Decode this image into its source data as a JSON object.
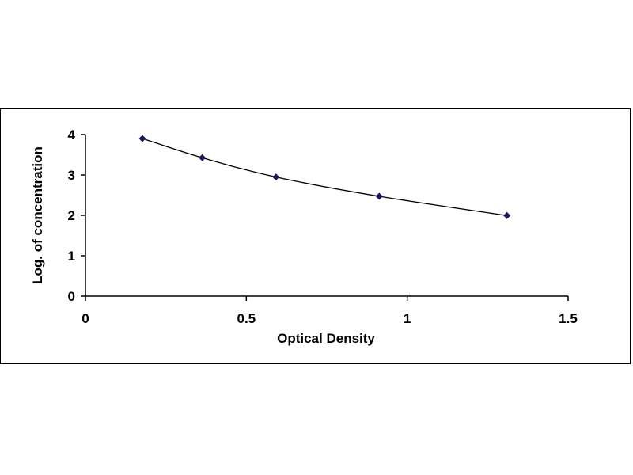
{
  "chart_data": {
    "type": "scatter",
    "title": "",
    "xlabel": "Optical Density",
    "ylabel": "Log. of concentration",
    "xlim": [
      0,
      1.5
    ],
    "ylim": [
      0,
      4
    ],
    "x_ticks": [
      "0",
      "0.5",
      "1",
      "1.5"
    ],
    "y_ticks": [
      "0",
      "1",
      "2",
      "3",
      "4"
    ],
    "grid": false,
    "legend": "none",
    "series": [
      {
        "x": [
          0.177,
          0.363,
          0.592,
          0.913,
          1.31
        ],
        "y": [
          3.903,
          3.426,
          2.949,
          2.471,
          1.994
        ],
        "marker_color": "#1a1a5e",
        "line_color": "#000000",
        "marker": "diamond",
        "trend_line": "smooth"
      }
    ]
  }
}
